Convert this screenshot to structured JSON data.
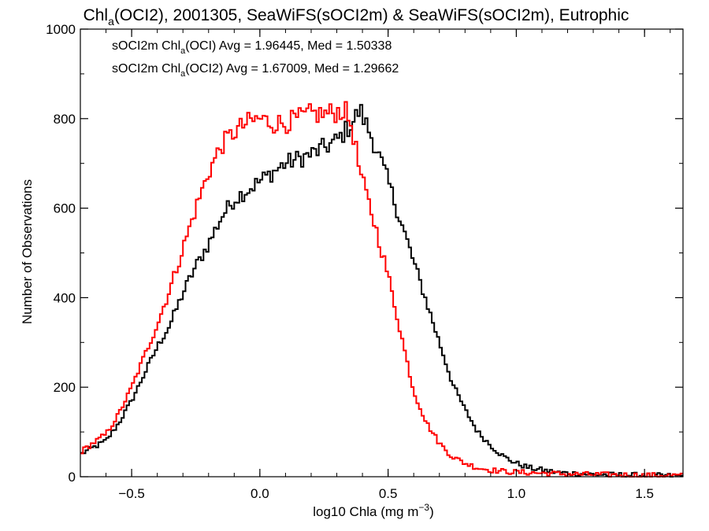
{
  "chart_data": {
    "type": "line",
    "title": "Chl_a(OCI2), 2001305, SeaWiFS(sOCI2m) & SeaWiFS(sOCI2m), Eutrophic",
    "title_parts": {
      "pre": "Chl",
      "sub": "a",
      "post": "(OCI2), 2001305, SeaWiFS(sOCI2m) & SeaWiFS(sOCI2m), Eutrophic"
    },
    "xlabel": "log10 Chla (mg m^-3)",
    "xlabel_parts": {
      "pre": "log10 Chla (mg m",
      "sup": "−3",
      "post": ")"
    },
    "ylabel": "Number of Observations",
    "xlim": [
      -0.7,
      1.65
    ],
    "ylim": [
      0,
      1000
    ],
    "xticks": [
      -0.5,
      0.0,
      0.5,
      1.0,
      1.5
    ],
    "xtick_labels": [
      "−0.5",
      "0.0",
      "0.5",
      "1.0",
      "1.5"
    ],
    "yticks": [
      0,
      200,
      400,
      600,
      800,
      1000
    ],
    "ytick_labels": [
      "0",
      "200",
      "400",
      "600",
      "800",
      "1000"
    ],
    "grid": false,
    "legend_position": "top-left",
    "series": [
      {
        "name": "sOCI2m Chl_a(OCI) Avg = 1.96445, Med = 1.50338",
        "label_parts": {
          "pre": "sOCI2m Chl",
          "sub": "a",
          "post": "(OCI) Avg = 1.96445, Med = 1.50338"
        },
        "color": "#000000",
        "x": [
          -0.7,
          -0.65,
          -0.6,
          -0.55,
          -0.5,
          -0.45,
          -0.4,
          -0.35,
          -0.3,
          -0.25,
          -0.2,
          -0.15,
          -0.1,
          -0.05,
          0.0,
          0.05,
          0.1,
          0.15,
          0.2,
          0.25,
          0.3,
          0.33,
          0.36,
          0.39,
          0.42,
          0.45,
          0.5,
          0.55,
          0.6,
          0.65,
          0.7,
          0.75,
          0.8,
          0.85,
          0.9,
          0.95,
          1.0,
          1.05,
          1.1,
          1.15,
          1.2,
          1.3,
          1.4,
          1.5,
          1.6,
          1.65
        ],
        "y": [
          50,
          65,
          80,
          120,
          170,
          230,
          290,
          340,
          410,
          470,
          520,
          580,
          620,
          640,
          660,
          680,
          700,
          710,
          720,
          735,
          750,
          770,
          790,
          820,
          780,
          740,
          660,
          570,
          480,
          390,
          300,
          210,
          150,
          100,
          70,
          45,
          30,
          20,
          15,
          10,
          8,
          5,
          4,
          3,
          2,
          2
        ]
      },
      {
        "name": "sOCI2m Chl_a(OCI2) Avg = 1.67009, Med = 1.29662",
        "label_parts": {
          "pre": "sOCI2m Chl",
          "sub": "a",
          "post": "(OCI2) Avg = 1.67009, Med = 1.29662"
        },
        "color": "#ff0000",
        "x": [
          -0.7,
          -0.65,
          -0.6,
          -0.55,
          -0.5,
          -0.45,
          -0.4,
          -0.35,
          -0.3,
          -0.25,
          -0.2,
          -0.15,
          -0.1,
          -0.05,
          0.0,
          0.05,
          0.1,
          0.15,
          0.2,
          0.25,
          0.3,
          0.33,
          0.36,
          0.39,
          0.42,
          0.45,
          0.5,
          0.55,
          0.6,
          0.65,
          0.7,
          0.75,
          0.8,
          0.85,
          0.9,
          0.95,
          1.0,
          1.05,
          1.1,
          1.15,
          1.2,
          1.3,
          1.4,
          1.5,
          1.6,
          1.65
        ],
        "y": [
          55,
          75,
          95,
          140,
          200,
          270,
          340,
          420,
          510,
          600,
          680,
          740,
          770,
          790,
          800,
          790,
          790,
          800,
          810,
          810,
          815,
          820,
          780,
          680,
          620,
          560,
          450,
          320,
          190,
          120,
          75,
          45,
          30,
          20,
          15,
          12,
          10,
          9,
          8,
          7,
          6,
          5,
          4,
          3,
          3,
          2
        ]
      }
    ]
  }
}
